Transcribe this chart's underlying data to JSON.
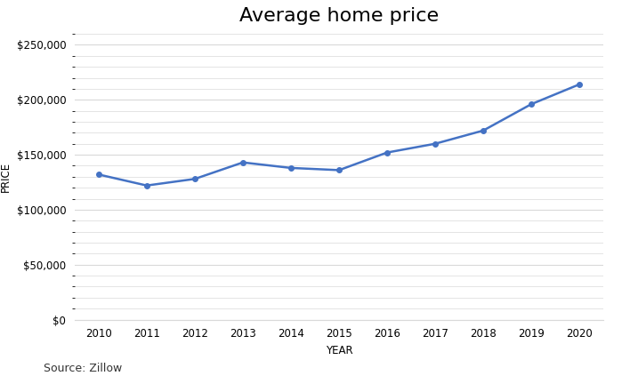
{
  "title": "Average home price",
  "xlabel": "YEAR",
  "ylabel": "PRICE",
  "source_text": "Source: Zillow",
  "years": [
    2010,
    2011,
    2012,
    2013,
    2014,
    2015,
    2016,
    2017,
    2018,
    2019,
    2020
  ],
  "prices": [
    132000,
    122000,
    128000,
    143000,
    138000,
    136000,
    152000,
    160000,
    172000,
    196000,
    214000
  ],
  "line_color": "#4472C4",
  "line_width": 1.8,
  "marker": "o",
  "marker_size": 4,
  "ylim": [
    0,
    260000
  ],
  "yticks": [
    0,
    50000,
    100000,
    150000,
    200000,
    250000
  ],
  "background_color": "#ffffff",
  "grid_color": "#d9d9d9",
  "title_fontsize": 16,
  "label_fontsize": 8.5,
  "tick_fontsize": 8.5,
  "source_fontsize": 9
}
